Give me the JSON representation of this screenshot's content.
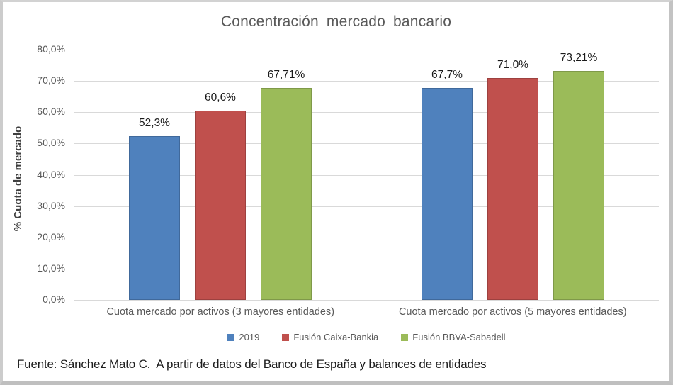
{
  "chart_data": {
    "type": "bar",
    "title": "Concentración mercado bancario",
    "xlabel": "",
    "ylabel": "% Cuota de mercado",
    "ylim": [
      0,
      80
    ],
    "ytick_step": 10,
    "ytick_labels": [
      "0,0%",
      "10,0%",
      "20,0%",
      "30,0%",
      "40,0%",
      "50,0%",
      "60,0%",
      "70,0%",
      "80,0%"
    ],
    "grid": true,
    "legend_position": "bottom",
    "categories": [
      "Cuota mercado por activos (3 mayores entidades)",
      "Cuota mercado por activos (5 mayores entidades)"
    ],
    "series": [
      {
        "name": "2019",
        "color": "#4f81bd",
        "values": [
          52.3,
          67.7
        ],
        "value_labels": [
          "52,3%",
          "67,7%"
        ]
      },
      {
        "name": "Fusión Caixa-Bankia",
        "color": "#c0504d",
        "values": [
          60.6,
          71.0
        ],
        "value_labels": [
          "60,6%",
          "71,0%"
        ]
      },
      {
        "name": "Fusión BBVA-Sabadell",
        "color": "#9bbb59",
        "values": [
          67.71,
          73.21
        ],
        "value_labels": [
          "67,71%",
          "73,21%"
        ]
      }
    ]
  },
  "footer": {
    "source_text": "Fuente: Sánchez Mato C.  A partir de datos del Banco de España y balances de entidades"
  }
}
